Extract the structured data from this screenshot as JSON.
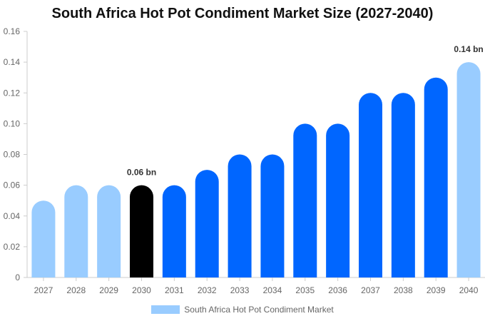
{
  "chart_data": {
    "type": "bar",
    "title": "South Africa Hot Pot Condiment Market Size (2027-2040)",
    "xlabel": "",
    "ylabel": "",
    "ylim": [
      0,
      0.16
    ],
    "yticks": [
      "0",
      "0.02",
      "0.04",
      "0.06",
      "0.08",
      "0.10",
      "0.12",
      "0.14",
      "0.16"
    ],
    "categories": [
      "2027",
      "2028",
      "2029",
      "2030",
      "2031",
      "2032",
      "2033",
      "2034",
      "2035",
      "2036",
      "2037",
      "2038",
      "2039",
      "2040"
    ],
    "series": [
      {
        "name": "South Africa Hot Pot Condiment Market",
        "values": [
          0.05,
          0.06,
          0.06,
          0.06,
          0.06,
          0.07,
          0.08,
          0.08,
          0.1,
          0.1,
          0.12,
          0.12,
          0.13,
          0.14
        ]
      }
    ],
    "bar_colors": [
      "#99ccff",
      "#99ccff",
      "#99ccff",
      "#000000",
      "#0066ff",
      "#0066ff",
      "#0066ff",
      "#0066ff",
      "#0066ff",
      "#0066ff",
      "#0066ff",
      "#0066ff",
      "#0066ff",
      "#99ccff"
    ],
    "data_labels": [
      {
        "category": "2030",
        "text": "0.06 bn"
      },
      {
        "category": "2040",
        "text": "0.14 bn"
      }
    ],
    "legend": {
      "label": "South Africa Hot Pot Condiment Market",
      "color": "#99ccff",
      "position": "bottom"
    }
  }
}
